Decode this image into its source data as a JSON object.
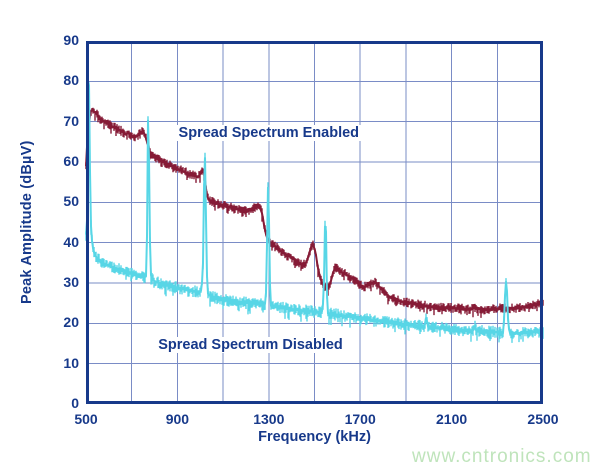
{
  "colors": {
    "axis_text": "#17398a",
    "grid": "#7a8cc6",
    "series_enabled": "#861b36",
    "series_disabled": "#58d6e6",
    "watermark": "#bfe4bb",
    "background": "#ffffff"
  },
  "watermark": {
    "text": "www.cntronics.com"
  },
  "chart_data": {
    "type": "line",
    "title": "",
    "xlabel": "Frequency (kHz)",
    "ylabel": "Peak Amplitude (dBµV)",
    "xlim": [
      500,
      2500
    ],
    "ylim": [
      0,
      90
    ],
    "x_ticks": [
      500,
      900,
      1300,
      1700,
      2100,
      2500
    ],
    "y_ticks": [
      0,
      10,
      20,
      30,
      40,
      50,
      60,
      70,
      80,
      90
    ],
    "x_grid_step_khz": 200,
    "y_grid_step_db": 10,
    "grid": true,
    "legend_position": "inline-annotations",
    "annotations": [
      {
        "text": "Spread Spectrum Enabled",
        "x_khz": 1300,
        "y_db": 67.2
      },
      {
        "text": "Spread Spectrum Disabled",
        "x_khz": 1220,
        "y_db": 14.6
      }
    ],
    "series": [
      {
        "name": "Spread Spectrum Enabled",
        "color_key": "series_enabled",
        "noise_db": 1.0,
        "points": [
          [
            500,
            59
          ],
          [
            504,
            62
          ],
          [
            506,
            71
          ],
          [
            508,
            76
          ],
          [
            510,
            73
          ],
          [
            512,
            68
          ],
          [
            515,
            71
          ],
          [
            520,
            72.5
          ],
          [
            528,
            73
          ],
          [
            536,
            72.5
          ],
          [
            545,
            72
          ],
          [
            557,
            71
          ],
          [
            570,
            70.3
          ],
          [
            585,
            69.8
          ],
          [
            600,
            69.3
          ],
          [
            615,
            68.8
          ],
          [
            630,
            68.4
          ],
          [
            645,
            68
          ],
          [
            660,
            67.5
          ],
          [
            672,
            66.9
          ],
          [
            684,
            67.2
          ],
          [
            695,
            66.6
          ],
          [
            706,
            66.1
          ],
          [
            716,
            66.4
          ],
          [
            728,
            66.6
          ],
          [
            738,
            67
          ],
          [
            746,
            67.6
          ],
          [
            754,
            67.2
          ],
          [
            762,
            66
          ],
          [
            772,
            64
          ],
          [
            780,
            62.5
          ],
          [
            790,
            61.6
          ],
          [
            805,
            61
          ],
          [
            825,
            60.4
          ],
          [
            850,
            59.7
          ],
          [
            875,
            59
          ],
          [
            900,
            58.3
          ],
          [
            925,
            57.7
          ],
          [
            950,
            57.1
          ],
          [
            975,
            56.5
          ],
          [
            992,
            56.3
          ],
          [
            1002,
            57.2
          ],
          [
            1010,
            58.2
          ],
          [
            1016,
            57.5
          ],
          [
            1022,
            55
          ],
          [
            1028,
            52
          ],
          [
            1036,
            50.7
          ],
          [
            1050,
            50.2
          ],
          [
            1070,
            49.8
          ],
          [
            1095,
            49.4
          ],
          [
            1120,
            49
          ],
          [
            1150,
            48.6
          ],
          [
            1180,
            48.2
          ],
          [
            1205,
            48
          ],
          [
            1228,
            48.2
          ],
          [
            1242,
            49
          ],
          [
            1252,
            49.3
          ],
          [
            1262,
            48.6
          ],
          [
            1272,
            47
          ],
          [
            1280,
            44
          ],
          [
            1290,
            41.5
          ],
          [
            1302,
            40.3
          ],
          [
            1315,
            39.8
          ],
          [
            1335,
            38.8
          ],
          [
            1360,
            37.7
          ],
          [
            1385,
            36.8
          ],
          [
            1410,
            36
          ],
          [
            1435,
            35
          ],
          [
            1452,
            34.4
          ],
          [
            1465,
            35.2
          ],
          [
            1478,
            37.5
          ],
          [
            1488,
            39.5
          ],
          [
            1496,
            39.2
          ],
          [
            1505,
            37.5
          ],
          [
            1514,
            34
          ],
          [
            1524,
            31.5
          ],
          [
            1536,
            29.6
          ],
          [
            1550,
            28.8
          ],
          [
            1562,
            29
          ],
          [
            1572,
            30.5
          ],
          [
            1582,
            32.8
          ],
          [
            1592,
            33.8
          ],
          [
            1605,
            33.3
          ],
          [
            1625,
            32.5
          ],
          [
            1648,
            31.8
          ],
          [
            1670,
            31
          ],
          [
            1692,
            29.8
          ],
          [
            1712,
            29
          ],
          [
            1732,
            29.3
          ],
          [
            1752,
            29.9
          ],
          [
            1768,
            30.2
          ],
          [
            1785,
            29
          ],
          [
            1805,
            27.7
          ],
          [
            1825,
            26.7
          ],
          [
            1850,
            26
          ],
          [
            1875,
            25.5
          ],
          [
            1900,
            25.2
          ],
          [
            1930,
            24.8
          ],
          [
            1960,
            24.6
          ],
          [
            1990,
            24.3
          ],
          [
            2020,
            24.1
          ],
          [
            2060,
            23.9
          ],
          [
            2100,
            23.8
          ],
          [
            2140,
            23.7
          ],
          [
            2175,
            23.5
          ],
          [
            2200,
            23.8
          ],
          [
            2230,
            23.5
          ],
          [
            2260,
            23.4
          ],
          [
            2290,
            23.6
          ],
          [
            2320,
            23.8
          ],
          [
            2350,
            23.6
          ],
          [
            2380,
            23.8
          ],
          [
            2410,
            24
          ],
          [
            2440,
            24.2
          ],
          [
            2465,
            24.6
          ],
          [
            2485,
            25
          ],
          [
            2500,
            25.2
          ]
        ]
      },
      {
        "name": "Spread Spectrum Disabled",
        "color_key": "series_disabled",
        "noise_db": 1.3,
        "points": [
          [
            500,
            42
          ],
          [
            505,
            46
          ],
          [
            508,
            60
          ],
          [
            511,
            79
          ],
          [
            514,
            79.3
          ],
          [
            517,
            60
          ],
          [
            520,
            46
          ],
          [
            525,
            41
          ],
          [
            531,
            38.5
          ],
          [
            538,
            37
          ],
          [
            548,
            36.2
          ],
          [
            560,
            35.5
          ],
          [
            580,
            34.8
          ],
          [
            600,
            34.3
          ],
          [
            625,
            33.8
          ],
          [
            650,
            33.3
          ],
          [
            675,
            32.9
          ],
          [
            700,
            32.5
          ],
          [
            720,
            32.1
          ],
          [
            740,
            31.8
          ],
          [
            756,
            31.4
          ],
          [
            764,
            31.8
          ],
          [
            768,
            45
          ],
          [
            771,
            70.5
          ],
          [
            774,
            70
          ],
          [
            778,
            48
          ],
          [
            782,
            32.5
          ],
          [
            790,
            30.8
          ],
          [
            805,
            30.3
          ],
          [
            825,
            29.9
          ],
          [
            850,
            29.5
          ],
          [
            875,
            29.1
          ],
          [
            900,
            28.8
          ],
          [
            925,
            28.5
          ],
          [
            950,
            28.2
          ],
          [
            975,
            27.9
          ],
          [
            995,
            27.8
          ],
          [
            1006,
            28.2
          ],
          [
            1013,
            36
          ],
          [
            1018,
            61.5
          ],
          [
            1022,
            61
          ],
          [
            1026,
            42
          ],
          [
            1031,
            27.5
          ],
          [
            1042,
            26.9
          ],
          [
            1060,
            26.5
          ],
          [
            1085,
            26.1
          ],
          [
            1110,
            25.8
          ],
          [
            1140,
            25.5
          ],
          [
            1170,
            25.3
          ],
          [
            1200,
            25.1
          ],
          [
            1235,
            24.9
          ],
          [
            1265,
            24.7
          ],
          [
            1283,
            24.6
          ],
          [
            1290,
            29
          ],
          [
            1295,
            54
          ],
          [
            1299,
            53.5
          ],
          [
            1303,
            36
          ],
          [
            1307,
            24.4
          ],
          [
            1325,
            24.2
          ],
          [
            1350,
            23.9
          ],
          [
            1380,
            23.6
          ],
          [
            1410,
            23.4
          ],
          [
            1445,
            23.2
          ],
          [
            1480,
            23
          ],
          [
            1510,
            22.8
          ],
          [
            1532,
            22.7
          ],
          [
            1540,
            26
          ],
          [
            1546,
            44.3
          ],
          [
            1550,
            44
          ],
          [
            1554,
            28
          ],
          [
            1558,
            22.5
          ],
          [
            1580,
            22.3
          ],
          [
            1605,
            22.1
          ],
          [
            1630,
            21.9
          ],
          [
            1660,
            21.6
          ],
          [
            1690,
            21.3
          ],
          [
            1715,
            21.1
          ],
          [
            1745,
            20.9
          ],
          [
            1775,
            20.6
          ],
          [
            1805,
            20.4
          ],
          [
            1835,
            20.1
          ],
          [
            1865,
            19.9
          ],
          [
            1895,
            19.7
          ],
          [
            1925,
            19.5
          ],
          [
            1955,
            19.4
          ],
          [
            1982,
            19.3
          ],
          [
            1989,
            21.8
          ],
          [
            1996,
            19.2
          ],
          [
            2025,
            19
          ],
          [
            2060,
            18.8
          ],
          [
            2095,
            18.6
          ],
          [
            2130,
            18.4
          ],
          [
            2165,
            18.3
          ],
          [
            2193,
            18.2
          ],
          [
            2200,
            19.6
          ],
          [
            2208,
            18.1
          ],
          [
            2240,
            18
          ],
          [
            2275,
            17.9
          ],
          [
            2305,
            17.8
          ],
          [
            2325,
            17.7
          ],
          [
            2331,
            22
          ],
          [
            2336,
            30.7
          ],
          [
            2341,
            30
          ],
          [
            2347,
            21
          ],
          [
            2353,
            17.6
          ],
          [
            2385,
            17.5
          ],
          [
            2420,
            17.6
          ],
          [
            2455,
            17.8
          ],
          [
            2480,
            17.9
          ],
          [
            2500,
            18
          ]
        ]
      }
    ]
  }
}
